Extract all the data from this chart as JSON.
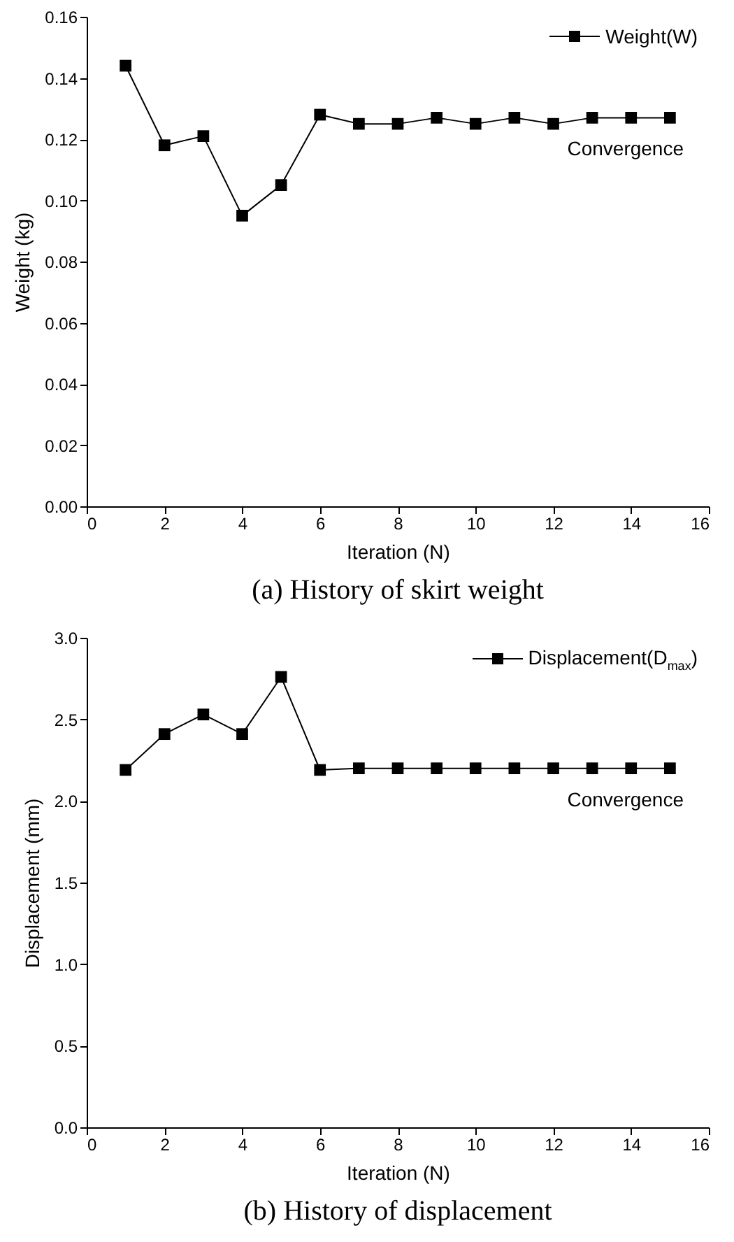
{
  "chart_data": [
    {
      "type": "line",
      "title": "(a)  History of skirt weight",
      "xlabel": "Iteration (N)",
      "ylabel": "Weight (kg)",
      "x": [
        1,
        2,
        3,
        4,
        5,
        6,
        7,
        8,
        9,
        10,
        11,
        12,
        13,
        14,
        15
      ],
      "series": [
        {
          "name": "Weight(W)",
          "color": "#000000",
          "values": [
            0.144,
            0.118,
            0.121,
            0.095,
            0.105,
            0.128,
            0.125,
            0.125,
            0.127,
            0.125,
            0.127,
            0.125,
            0.127,
            0.127,
            0.127
          ]
        }
      ],
      "xlim": [
        0,
        16
      ],
      "xticks": [
        0,
        2,
        4,
        6,
        8,
        10,
        12,
        14,
        16
      ],
      "ylim": [
        0,
        0.16
      ],
      "yticks": [
        {
          "value": 0,
          "label": "0.00"
        },
        {
          "value": 0.02,
          "label": "0.02"
        },
        {
          "value": 0.04,
          "label": "0.04"
        },
        {
          "value": 0.06,
          "label": "0.06"
        },
        {
          "value": 0.08,
          "label": "0.08"
        },
        {
          "value": 0.1,
          "label": "0.10"
        },
        {
          "value": 0.12,
          "label": "0.12"
        },
        {
          "value": 0.14,
          "label": "0.14"
        },
        {
          "value": 0.16,
          "label": "0.16"
        }
      ],
      "annotations": [
        "Convergence"
      ],
      "legend": "top right",
      "marker": "square",
      "grid": false
    },
    {
      "type": "line",
      "title": "(b)  History of displacement",
      "xlabel": "Iteration (N)",
      "ylabel": "Displacement (mm)",
      "x": [
        1,
        2,
        3,
        4,
        5,
        6,
        7,
        8,
        9,
        10,
        11,
        12,
        13,
        14,
        15
      ],
      "series": [
        {
          "name": "Displacement(D$_{max}$)",
          "color": "#000000",
          "values": [
            2.19,
            2.41,
            2.53,
            2.41,
            2.76,
            2.19,
            2.2,
            2.2,
            2.2,
            2.2,
            2.2,
            2.2,
            2.2,
            2.2,
            2.2
          ]
        }
      ],
      "xlim": [
        0,
        16
      ],
      "xticks": [
        0,
        2,
        4,
        6,
        8,
        10,
        12,
        14,
        16
      ],
      "ylim": [
        0,
        3
      ],
      "yticks": [
        {
          "value": 0,
          "label": "0.0"
        },
        {
          "value": 0.5,
          "label": "0.5"
        },
        {
          "value": 1,
          "label": "1.0"
        },
        {
          "value": 1.5,
          "label": "1.5"
        },
        {
          "value": 2,
          "label": "2.0"
        },
        {
          "value": 2.5,
          "label": "2.5"
        },
        {
          "value": 3,
          "label": "3.0"
        }
      ],
      "annotations": [
        "Convergence"
      ],
      "legend": "top right",
      "marker": "square",
      "grid": false
    }
  ]
}
